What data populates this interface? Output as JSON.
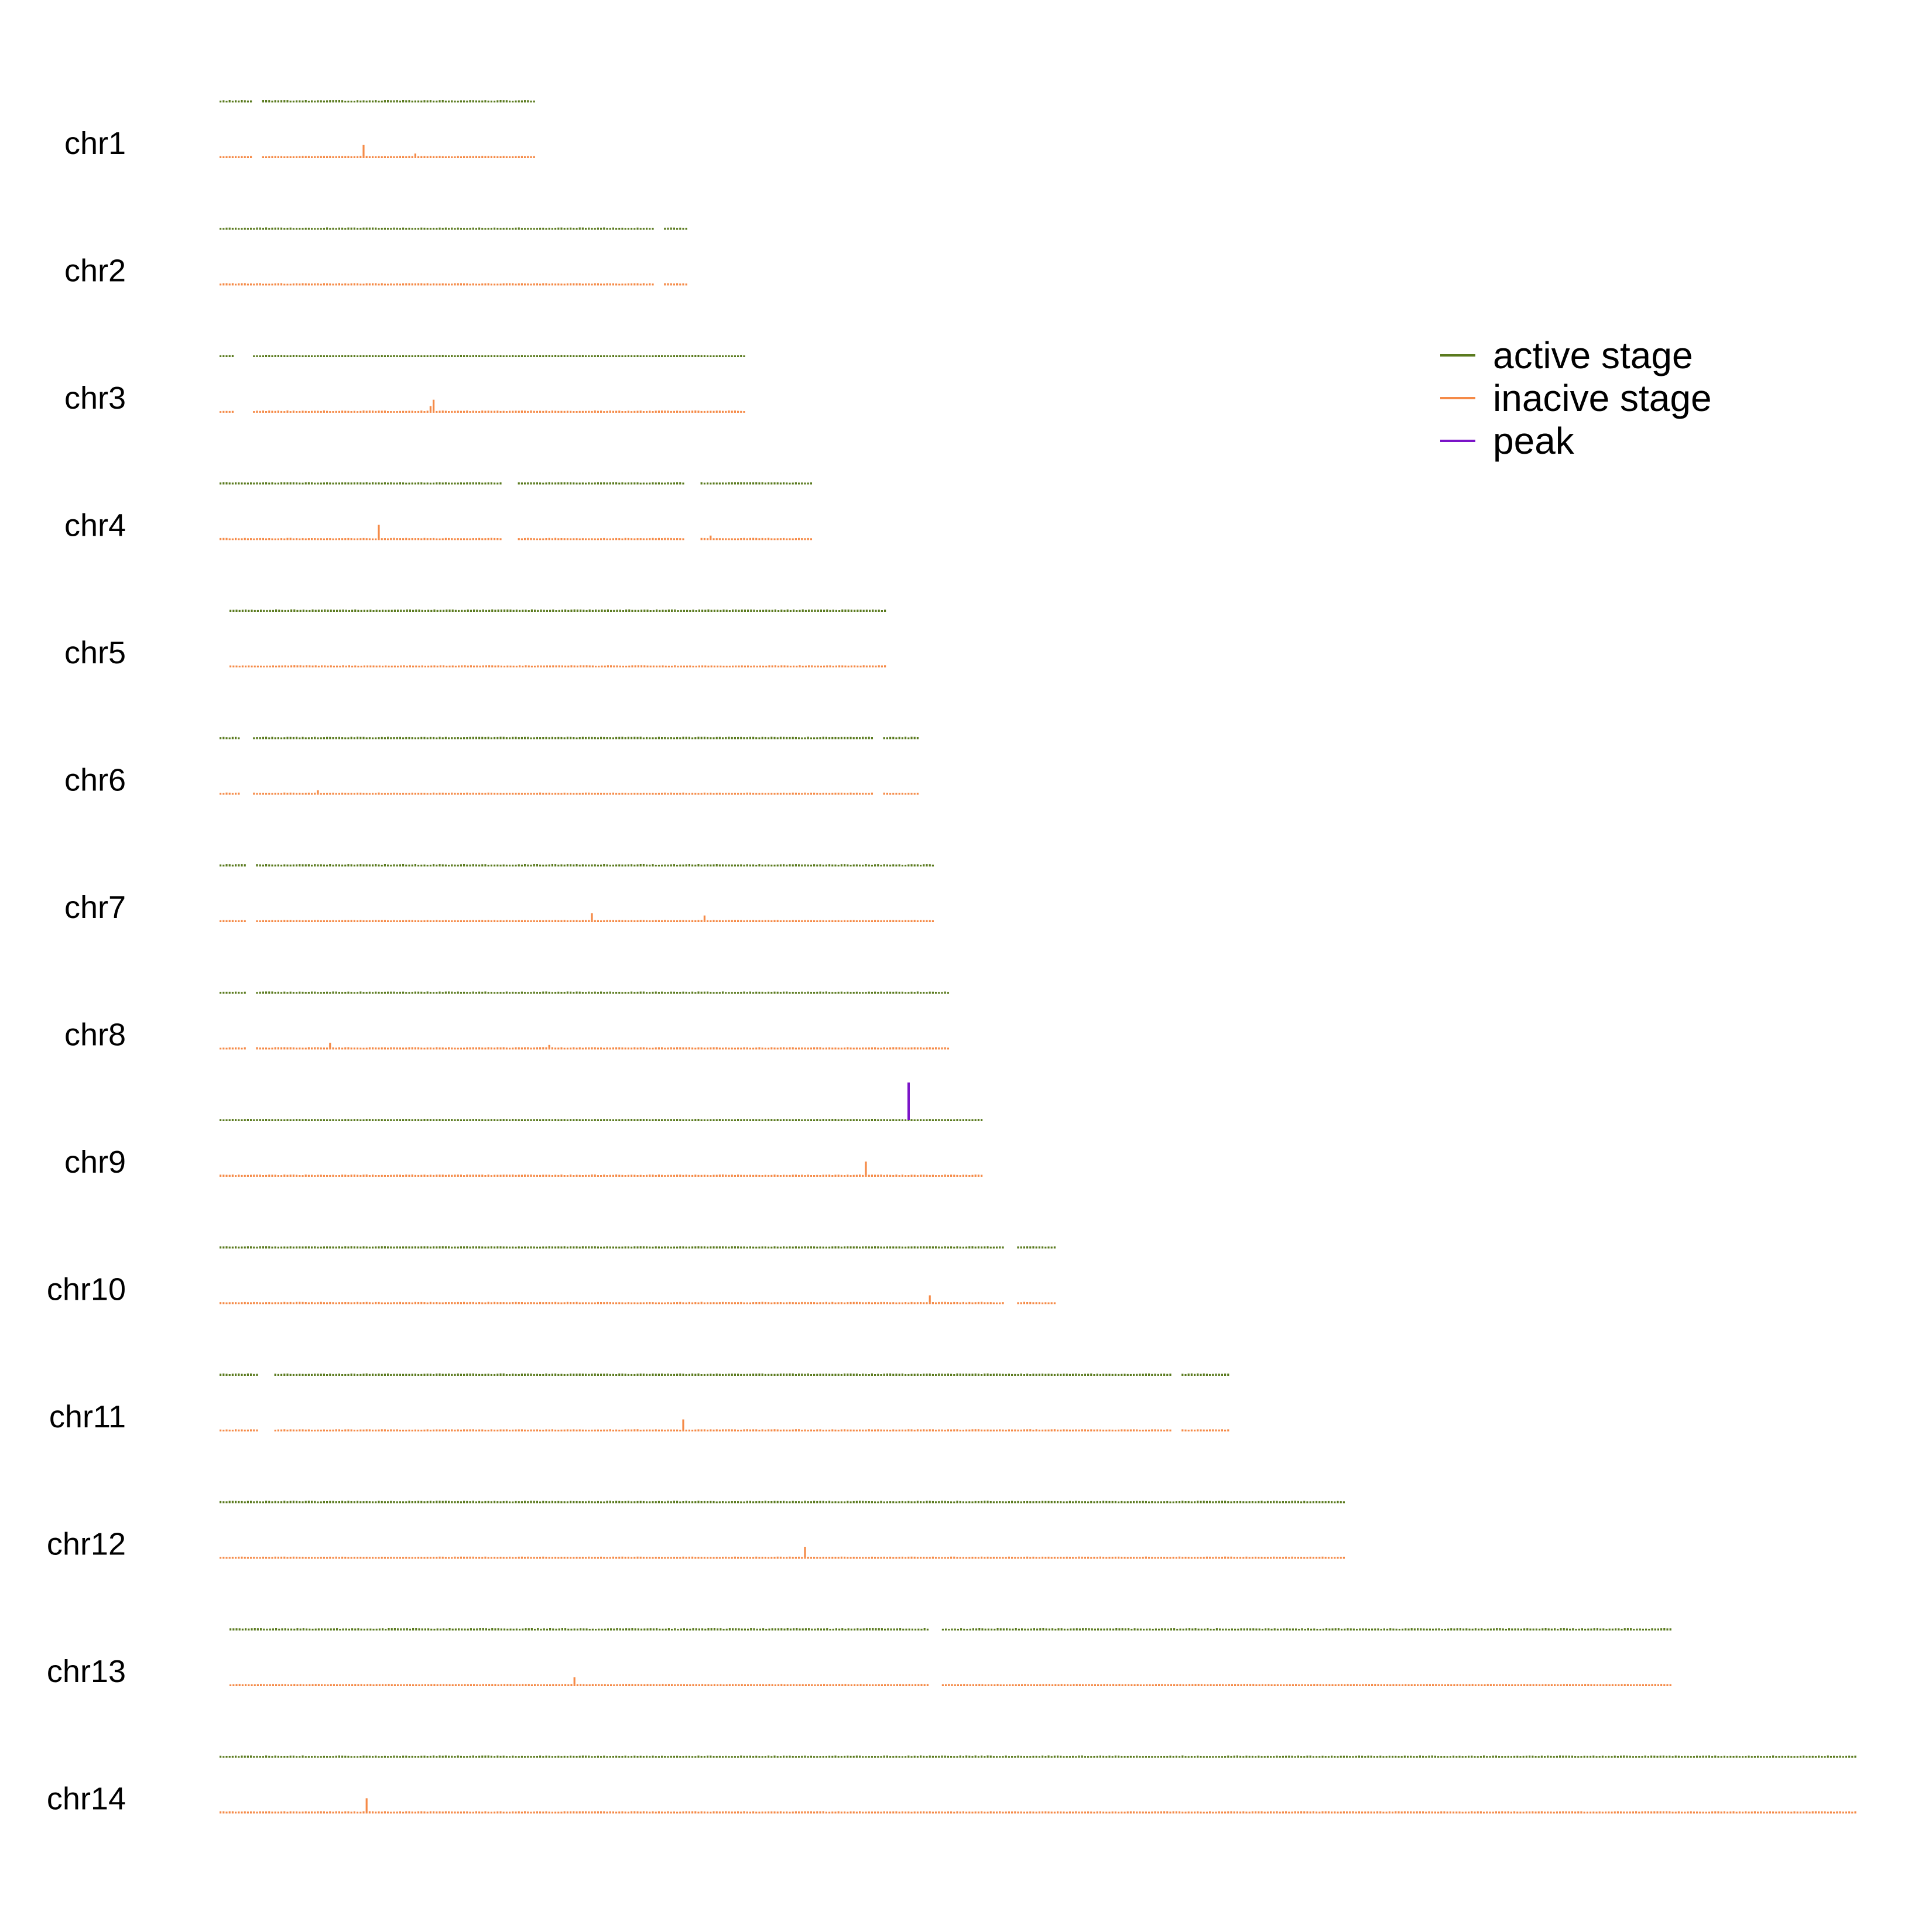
{
  "chart_data": {
    "type": "bar",
    "tracks": [
      {
        "chr": "chr1",
        "active": [],
        "inactive": []
      },
      {
        "chr": "chr2",
        "active": [],
        "inactive": []
      },
      {
        "chr": "chr3",
        "active": [],
        "inactive": []
      },
      {
        "chr": "chr4",
        "active": [],
        "inactive": []
      },
      {
        "chr": "chr5",
        "active": [],
        "inactive": []
      },
      {
        "chr": "chr6",
        "active": [],
        "inactive": []
      },
      {
        "chr": "chr7",
        "active": [],
        "inactive": []
      },
      {
        "chr": "chr8",
        "active": [],
        "inactive": []
      },
      {
        "chr": "chr9",
        "active": [],
        "inactive": []
      },
      {
        "chr": "chr10",
        "active": [],
        "inactive": []
      },
      {
        "chr": "chr11",
        "active": [],
        "inactive": []
      },
      {
        "chr": "chr12",
        "active": [],
        "inactive": []
      },
      {
        "chr": "chr13",
        "active": [],
        "inactive": []
      },
      {
        "chr": "chr14",
        "active": [],
        "inactive": []
      }
    ],
    "peak": {
      "chr": "chr9"
    },
    "legend": {
      "placement": "top-right",
      "entries": [
        {
          "label": "active stage",
          "color": "#5a7a1e"
        },
        {
          "label": "inacive stage",
          "color": "#f58a47"
        },
        {
          "label": "peak",
          "color": "#7b14c8"
        }
      ]
    },
    "colors": {
      "active": "#5a7a1e",
      "inactive": "#f58a47",
      "peak": "#7b14c8"
    }
  }
}
